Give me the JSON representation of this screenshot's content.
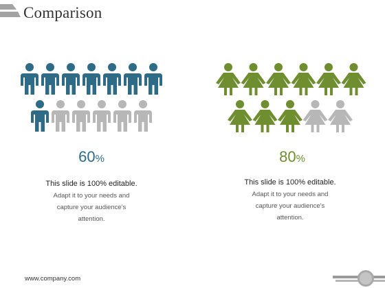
{
  "slide": {
    "title": "Comparison",
    "footer_url": "www.company.com"
  },
  "colors": {
    "male_active": "#2d6b86",
    "female_active": "#6e8e2f",
    "inactive": "#b7b7b7",
    "title_bar": "#a3a3a3"
  },
  "left": {
    "icon": "man-icon",
    "total": 13,
    "highlighted": 8,
    "percent": "60",
    "percent_symbol": "%",
    "heading": "This slide is 100% editable.",
    "body": [
      "Adapt it to your needs and",
      "capture your audience's",
      "attention."
    ]
  },
  "right": {
    "icon": "woman-icon",
    "total": 11,
    "highlighted": 9,
    "percent": "80",
    "percent_symbol": "%",
    "heading": "This slide is 100% editable.",
    "body": [
      "Adapt it to your needs and",
      "capture your audience's",
      "attention."
    ]
  }
}
